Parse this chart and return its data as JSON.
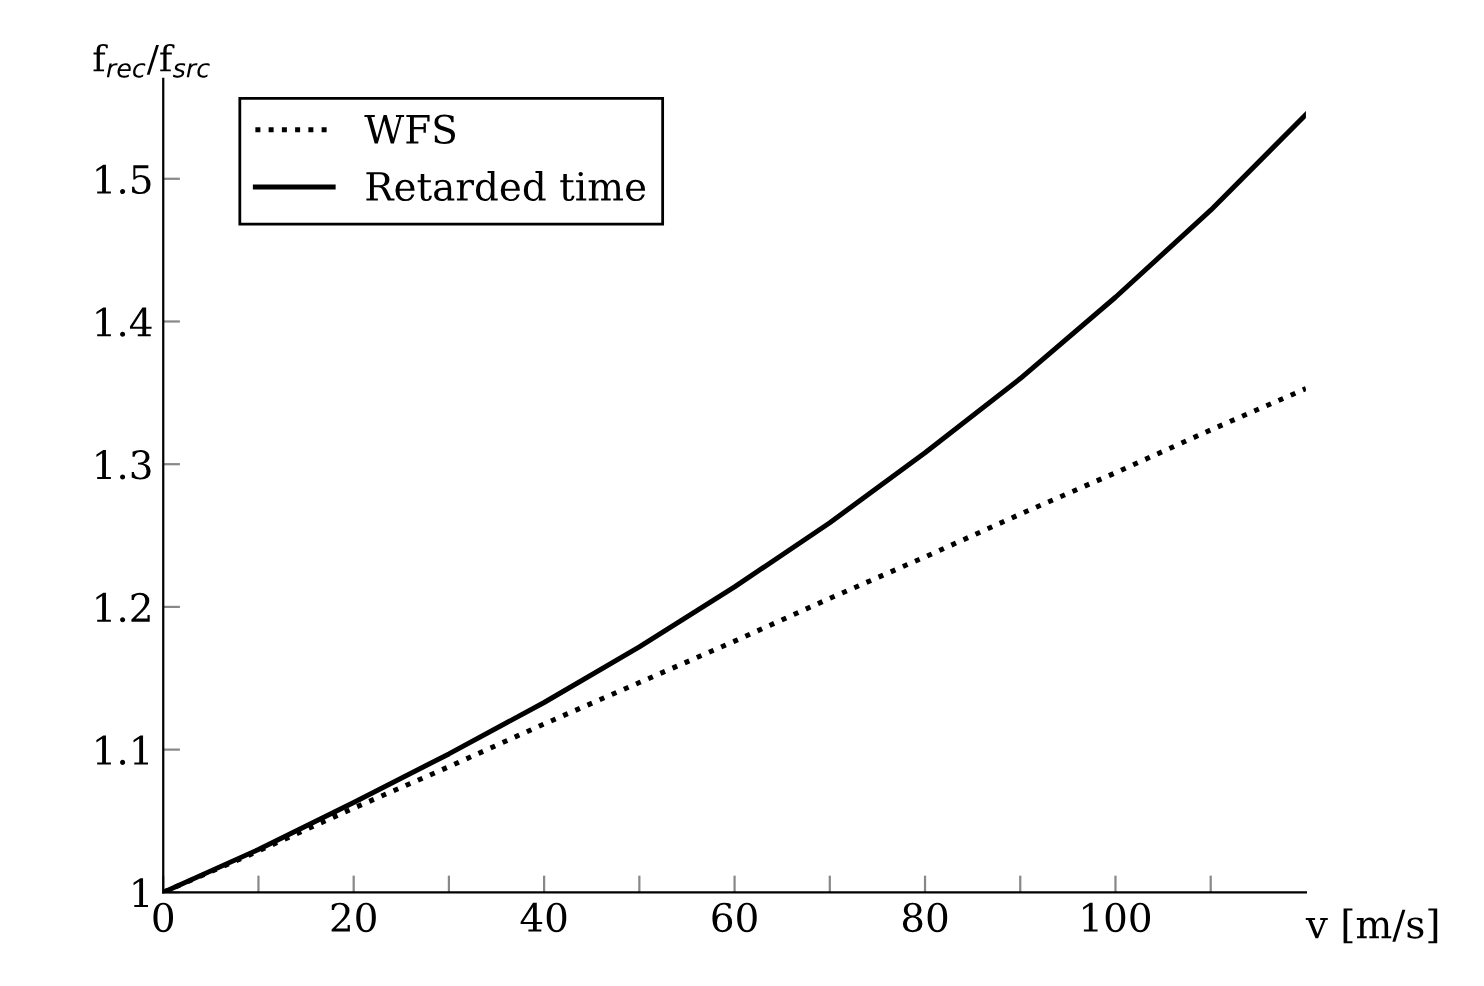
{
  "chart_data": {
    "type": "line",
    "xlabel": "v [m/s]",
    "ylabel": "f$_{rec}$/f$_{src}$",
    "x": [
      0,
      10,
      20,
      30,
      40,
      50,
      60,
      70,
      80,
      90,
      100,
      110,
      120
    ],
    "series": [
      {
        "name": "WFS",
        "color": "#000000",
        "line_style": "dotted",
        "values": [
          1,
          1.029,
          1.059,
          1.088,
          1.118,
          1.147,
          1.176,
          1.206,
          1.235,
          1.265,
          1.294,
          1.324,
          1.353
        ]
      },
      {
        "name": "Retarded time",
        "color": "#000000",
        "line_style": "solid",
        "values": [
          1,
          1.03,
          1.063,
          1.097,
          1.133,
          1.172,
          1.214,
          1.259,
          1.308,
          1.36,
          1.417,
          1.478,
          1.545
        ]
      }
    ],
    "xlim": [
      0,
      120
    ],
    "ylim": [
      1,
      1.57
    ],
    "xticks": [
      0,
      {
        "value": 10,
        "label": null
      },
      20,
      {
        "value": 30,
        "label": null
      },
      40,
      {
        "value": 50,
        "label": null
      },
      60,
      {
        "value": 70,
        "label": null
      },
      80,
      {
        "value": 90,
        "label": null
      },
      100,
      {
        "value": 110,
        "label": null
      }
    ],
    "yticks": [
      1,
      1.1,
      1.2,
      1.3,
      1.4,
      1.5
    ],
    "grid": false,
    "legend": "top left",
    "marker": "none"
  }
}
